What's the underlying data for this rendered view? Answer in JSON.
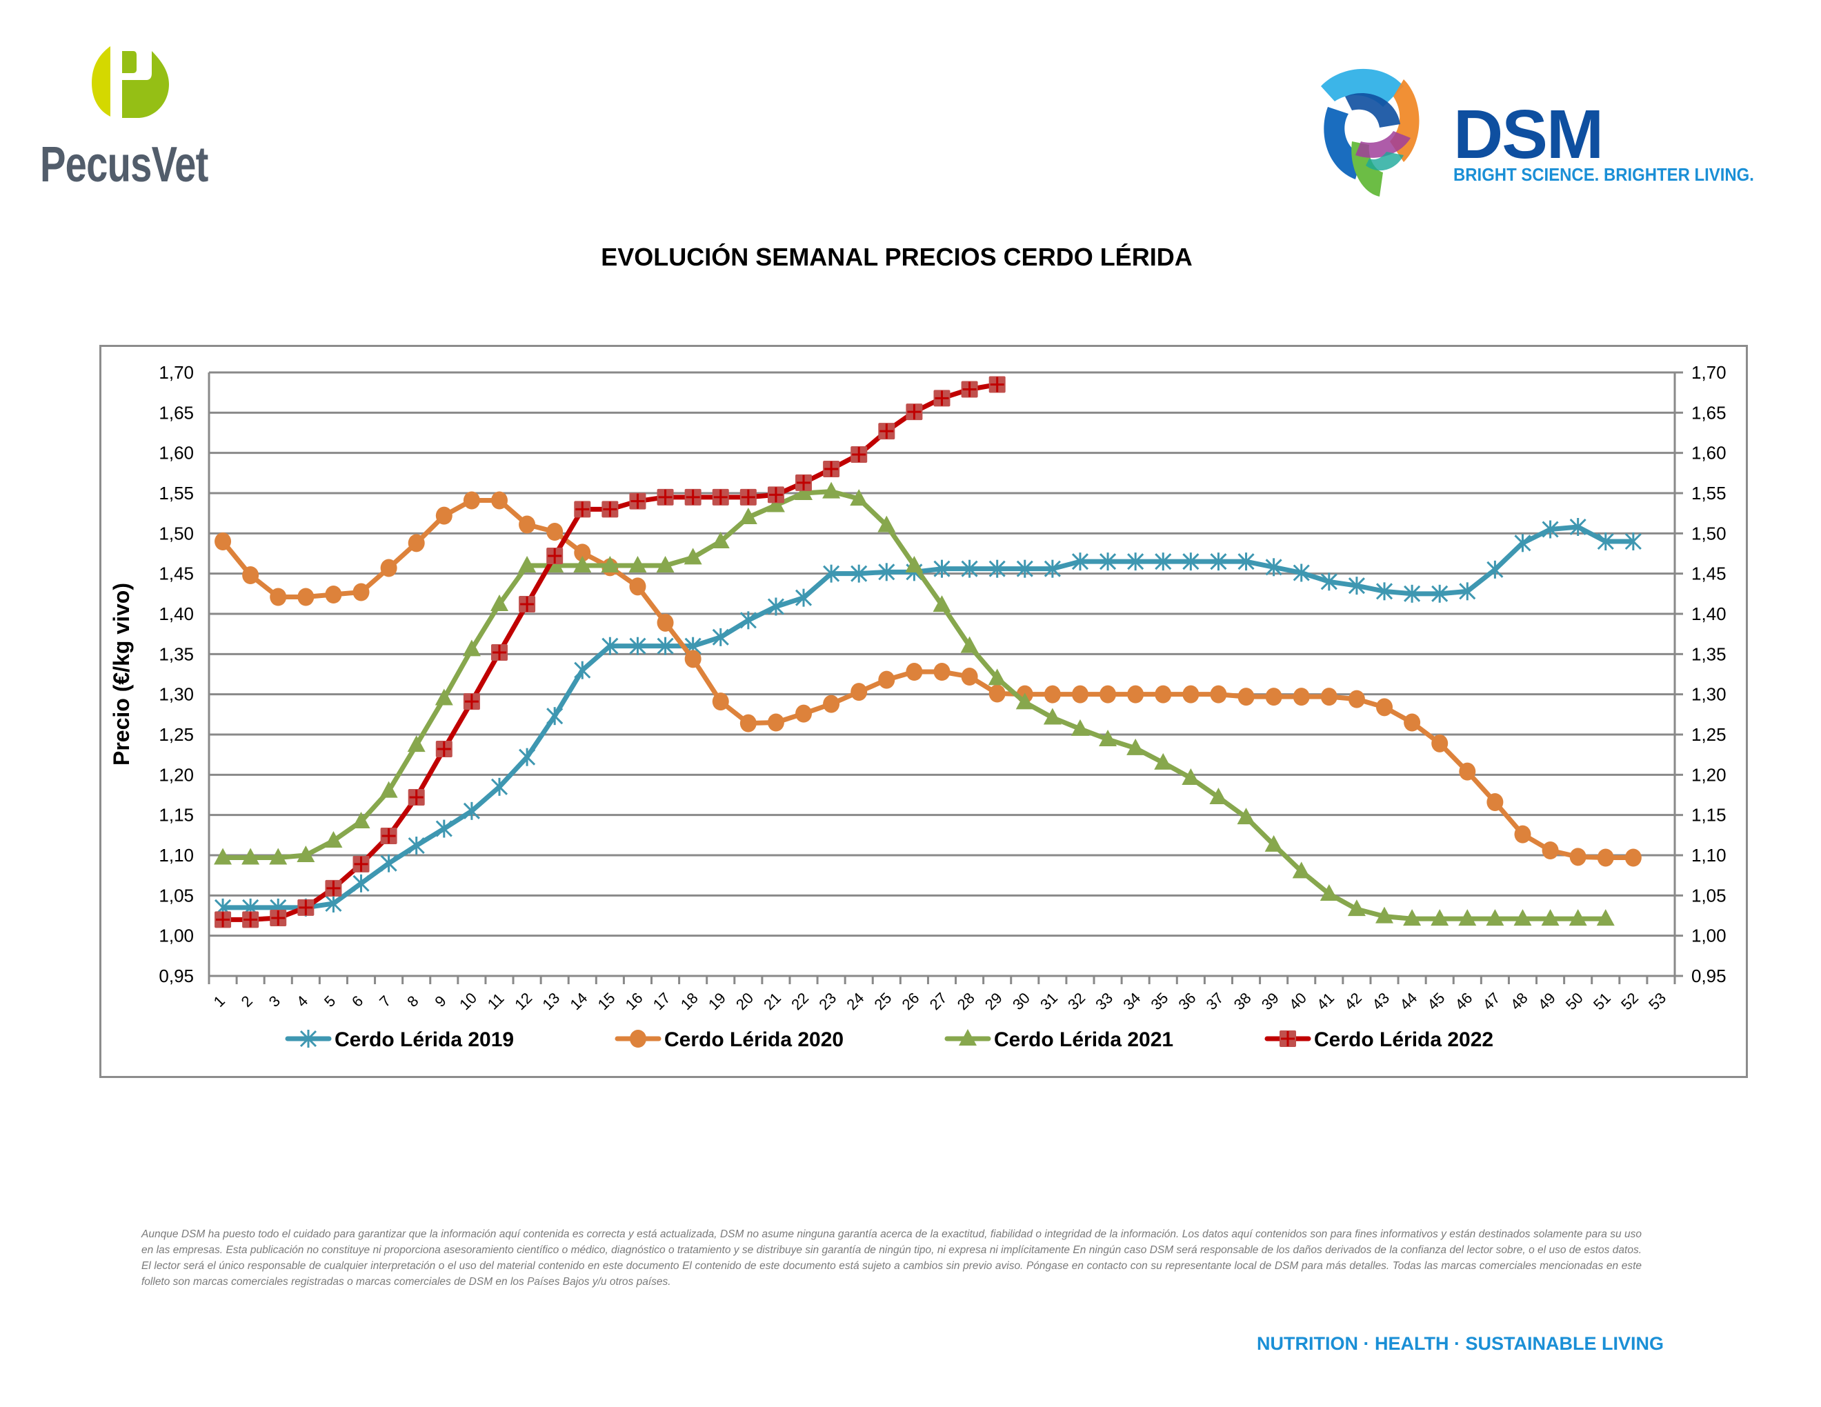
{
  "header": {
    "left_logo_text": "PecusVet",
    "left_logo_icon": "pecusvet-p-icon",
    "right_logo_text": "DSM",
    "right_logo_tagline": "BRIGHT SCIENCE. BRIGHTER LIVING.",
    "right_logo_icon": "dsm-swirl-icon"
  },
  "page_title": "EVOLUCIÓN SEMANAL PRECIOS CERDO LÉRIDA",
  "colors": {
    "s2019": "#3e97b1",
    "s2020": "#dd823b",
    "s2021": "#87a74d",
    "s2022": "#c00000",
    "s2022_marker": "#c0504d",
    "grid": "#898989",
    "tagline": "#1a8fd6"
  },
  "chart_data": {
    "type": "line",
    "title": "EVOLUCIÓN SEMANAL PRECIOS CERDO LÉRIDA",
    "xlabel": "",
    "ylabel": "Precio (€/kg vivo)",
    "ylim": [
      0.95,
      1.7
    ],
    "y_ticks": [
      "0,95",
      "1,00",
      "1,05",
      "1,10",
      "1,15",
      "1,20",
      "1,25",
      "1,30",
      "1,35",
      "1,40",
      "1,45",
      "1,50",
      "1,55",
      "1,60",
      "1,65",
      "1,70"
    ],
    "secondary_y_ticks": [
      "0,95",
      "1,00",
      "1,05",
      "1,10",
      "1,15",
      "1,20",
      "1,25",
      "1,30",
      "1,35",
      "1,40",
      "1,45",
      "1,50",
      "1,55",
      "1,60",
      "1,65",
      "1,70"
    ],
    "grid": true,
    "legend_position": "bottom",
    "categories": [
      "1",
      "2",
      "3",
      "4",
      "5",
      "6",
      "7",
      "8",
      "9",
      "10",
      "11",
      "12",
      "13",
      "14",
      "15",
      "16",
      "17",
      "18",
      "19",
      "20",
      "21",
      "22",
      "23",
      "24",
      "25",
      "26",
      "27",
      "28",
      "29",
      "30",
      "31",
      "32",
      "33",
      "34",
      "35",
      "36",
      "37",
      "38",
      "39",
      "40",
      "41",
      "42",
      "43",
      "44",
      "45",
      "46",
      "47",
      "48",
      "49",
      "50",
      "51",
      "52",
      "53"
    ],
    "series": [
      {
        "name": "Cerdo Lérida 2019",
        "marker": "asterisk",
        "values": [
          1.035,
          1.035,
          1.035,
          1.035,
          1.04,
          1.065,
          1.09,
          1.112,
          1.133,
          1.155,
          1.185,
          1.222,
          1.273,
          1.33,
          1.36,
          1.36,
          1.36,
          1.36,
          1.371,
          1.392,
          1.409,
          1.42,
          1.45,
          1.45,
          1.452,
          1.452,
          1.456,
          1.456,
          1.456,
          1.456,
          1.456,
          1.465,
          1.465,
          1.465,
          1.465,
          1.465,
          1.465,
          1.465,
          1.458,
          1.451,
          1.44,
          1.435,
          1.428,
          1.425,
          1.425,
          1.428,
          1.455,
          1.488,
          1.505,
          1.508,
          1.49,
          1.49
        ]
      },
      {
        "name": "Cerdo Lérida 2020",
        "marker": "circle",
        "values": [
          1.49,
          1.448,
          1.421,
          1.421,
          1.424,
          1.427,
          1.457,
          1.488,
          1.522,
          1.541,
          1.541,
          1.511,
          1.502,
          1.476,
          1.458,
          1.434,
          1.389,
          1.344,
          1.291,
          1.264,
          1.265,
          1.276,
          1.288,
          1.303,
          1.318,
          1.328,
          1.328,
          1.322,
          1.301,
          1.3,
          1.3,
          1.3,
          1.3,
          1.3,
          1.3,
          1.3,
          1.3,
          1.297,
          1.297,
          1.297,
          1.297,
          1.294,
          1.284,
          1.265,
          1.239,
          1.204,
          1.166,
          1.126,
          1.106,
          1.098,
          1.097,
          1.097
        ]
      },
      {
        "name": "Cerdo Lérida 2021",
        "marker": "triangle",
        "values": [
          1.097,
          1.097,
          1.097,
          1.1,
          1.118,
          1.142,
          1.18,
          1.237,
          1.295,
          1.356,
          1.412,
          1.46,
          1.46,
          1.46,
          1.46,
          1.46,
          1.46,
          1.47,
          1.49,
          1.52,
          1.535,
          1.55,
          1.552,
          1.543,
          1.51,
          1.46,
          1.411,
          1.36,
          1.32,
          1.29,
          1.271,
          1.257,
          1.244,
          1.233,
          1.215,
          1.196,
          1.172,
          1.147,
          1.113,
          1.08,
          1.052,
          1.033,
          1.024,
          1.021,
          1.021,
          1.021,
          1.021,
          1.021,
          1.021,
          1.021,
          1.021
        ]
      },
      {
        "name": "Cerdo Lérida 2022",
        "marker": "square-plus",
        "values": [
          1.02,
          1.02,
          1.022,
          1.035,
          1.059,
          1.089,
          1.124,
          1.172,
          1.232,
          1.291,
          1.352,
          1.412,
          1.472,
          1.53,
          1.53,
          1.54,
          1.545,
          1.545,
          1.545,
          1.545,
          1.548,
          1.563,
          1.58,
          1.598,
          1.627,
          1.651,
          1.668,
          1.679,
          1.685
        ]
      }
    ]
  },
  "footer": {
    "disclaimer": "Aunque DSM ha puesto todo el cuidado para garantizar que la información aquí contenida es correcta y está actualizada, DSM no asume ninguna garantía acerca de la exactitud, fiabilidad o integridad de la información. Los datos aquí contenidos son para fines informativos y están destinados solamente para su uso en las empresas. Esta publicación no constituye ni proporciona asesoramiento científico o médico, diagnóstico o tratamiento y se distribuye sin garantía de ningún tipo, ni expresa ni implícitamente En ningún caso DSM será responsable de los daños derivados de la confianza del lector sobre, o el uso de estos datos. El lector será el único responsable de cualquier interpretación o el uso del material contenido en este documento El contenido de este documento está sujeto a cambios sin previo aviso. Póngase en contacto con su representante local de DSM para más detalles. Todas las marcas comerciales mencionadas en este folleto son marcas comerciales registradas o marcas comerciales de DSM en los Países Bajos y/u otros países.",
    "tagline": "NUTRITION  ·  HEALTH  ·  SUSTAINABLE LIVING"
  }
}
